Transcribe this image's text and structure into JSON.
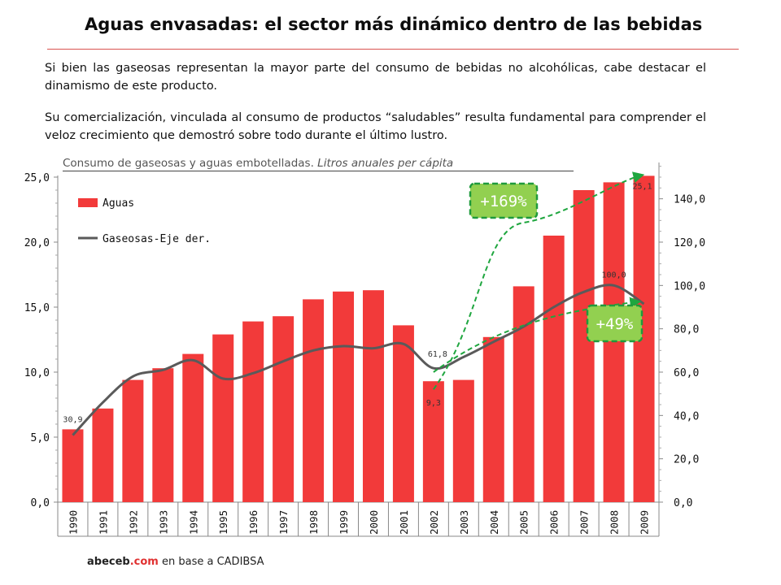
{
  "header": {
    "title": "Aguas envasadas: el sector más dinámico dentro de las bebidas",
    "paragraph_1": "Si bien las gaseosas representan la mayor parte del consumo de bebidas no alcohólicas, cabe destacar el dinamismo de este producto.",
    "paragraph_2": "Su comercialización, vinculada al consumo de productos “saludables” resulta fundamental para comprender el veloz crecimiento que demostró sobre todo durante el último lustro."
  },
  "chart_data": {
    "type": "bar",
    "title": "Consumo de gaseosas y aguas embotelladas.",
    "subtitle": "Litros anuales per cápita",
    "categories": [
      "1990",
      "1991",
      "1992",
      "1993",
      "1994",
      "1995",
      "1996",
      "1997",
      "1998",
      "1999",
      "2000",
      "2001",
      "2002",
      "2003",
      "2004",
      "2005",
      "2006",
      "2007",
      "2008",
      "2009"
    ],
    "series": [
      {
        "name": "Aguas",
        "type": "bar",
        "axis": "left",
        "color": "#f23a3a",
        "values": [
          5.6,
          7.2,
          9.4,
          10.3,
          11.4,
          12.9,
          13.9,
          14.3,
          15.6,
          16.2,
          16.3,
          13.6,
          9.3,
          9.4,
          12.7,
          16.6,
          20.5,
          24.0,
          24.6,
          25.1
        ]
      },
      {
        "name": "Gaseosas-Eje der.",
        "type": "line",
        "axis": "right",
        "color": "#5a5a5a",
        "values": [
          30.9,
          46.0,
          58.0,
          61.0,
          65.5,
          57.0,
          59.5,
          65.0,
          70.0,
          72.0,
          71.0,
          73.0,
          61.8,
          67.0,
          74.0,
          81.0,
          90.0,
          97.0,
          100.0,
          91.5
        ]
      }
    ],
    "y_left": {
      "min": 0,
      "max": 25,
      "ticks": [
        "0,0",
        "5,0",
        "10,0",
        "15,0",
        "20,0",
        "25,0"
      ]
    },
    "y_right": {
      "min": 0,
      "max": 150,
      "ticks": [
        "0,0",
        "20,0",
        "40,0",
        "60,0",
        "80,0",
        "100,0",
        "120,0",
        "140,0"
      ]
    },
    "data_labels": [
      {
        "text": "30,9",
        "index": 0,
        "series": "Gaseosas-Eje der."
      },
      {
        "text": "61,8",
        "index": 12,
        "series": "Gaseosas-Eje der."
      },
      {
        "text": "100,0",
        "index": 18,
        "series": "Gaseosas-Eje der."
      },
      {
        "text": "9,3",
        "index": 12,
        "series": "Aguas"
      },
      {
        "text": "25,1",
        "index": 19,
        "series": "Aguas"
      }
    ],
    "annotations": [
      {
        "text": "+169%",
        "series": "Aguas",
        "from": "2002",
        "to": "2009",
        "fill": "#92d050",
        "border": "#1f9a3c"
      },
      {
        "text": "+49%",
        "series": "Gaseosas-Eje der.",
        "from": "2002",
        "to": "2009",
        "fill": "#92d050",
        "border": "#1f9a3c"
      }
    ],
    "legend": {
      "position": "top-left"
    }
  },
  "footer": {
    "brand_name": "abeceb",
    "brand_domain": ".com",
    "source_text": "en base a CADIBSA"
  }
}
